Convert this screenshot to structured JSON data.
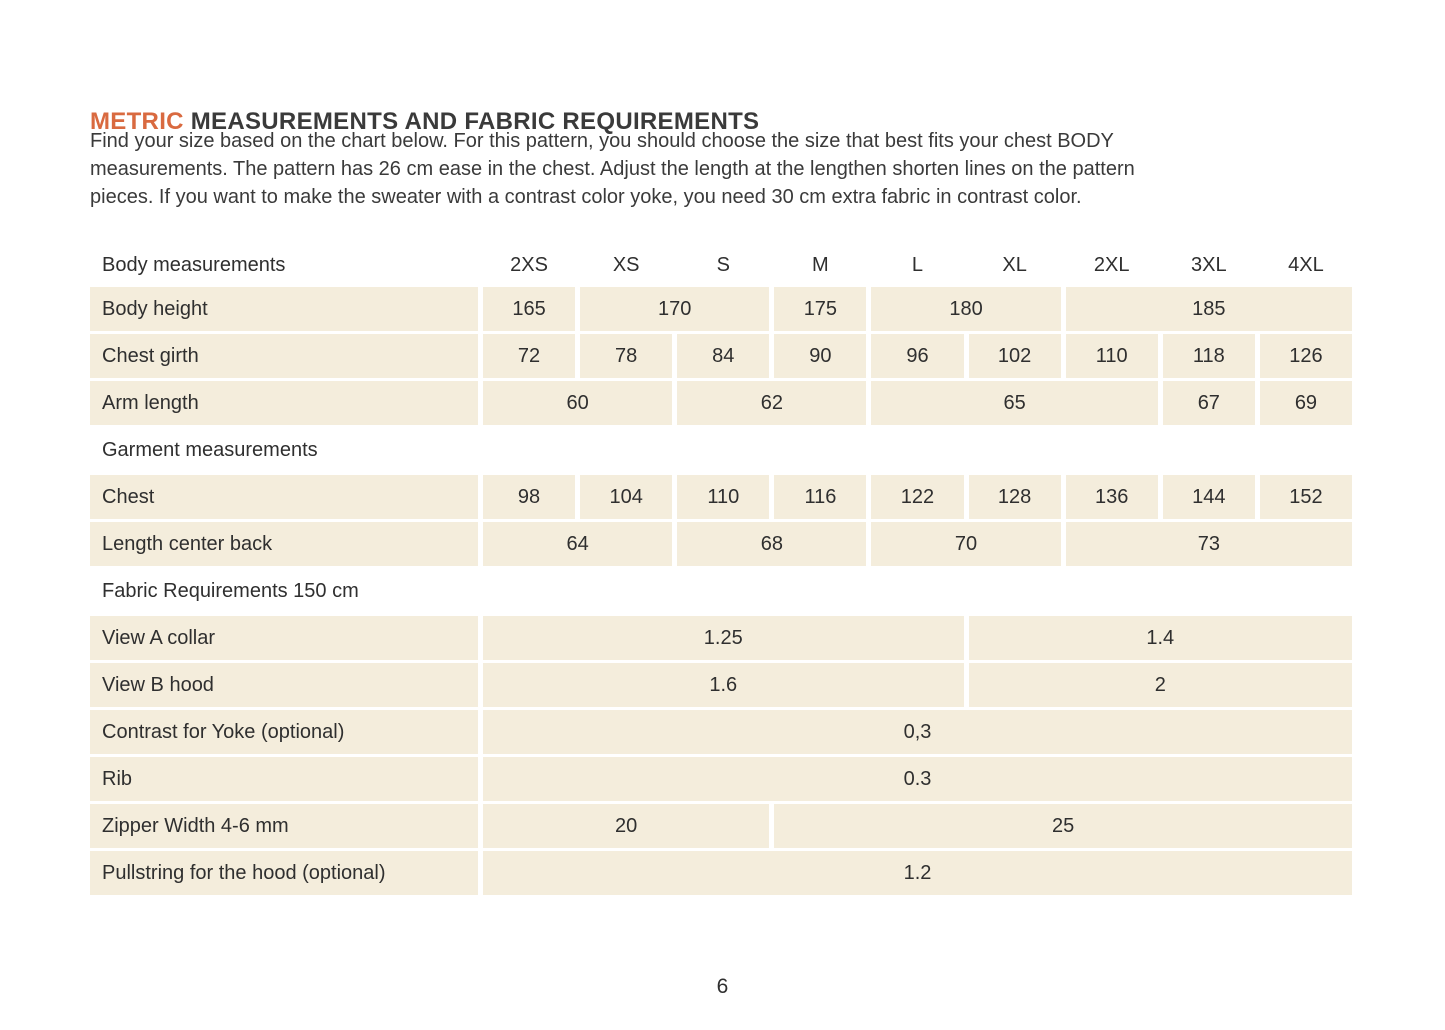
{
  "page": {
    "title_highlight": "METRIC",
    "title_rest": "MEASUREMENTS AND FABRIC REQUIREMENTS",
    "intro_lines": [
      "Find your size based on the chart below. For this pattern, you should choose the size that best fits your chest BODY",
      "measurements. The pattern has 26 cm ease in the chest. Adjust the length at the lengthen shorten lines on the pattern",
      "pieces. If you want to make the sweater with a contrast color yoke, you need 30 cm extra fabric in contrast color.",
      "Find your size based on the chart below. For this pattern, you should choose the size that best fits your chest BODY measurements. The pattern has 26 cm ease in the chest. Adjust the length at the lengthen shorten lines on the pattern pieces. If you want to make the sweater with a contrast color yoke, you need 30 cm extra fabric in contrast color."
    ],
    "page_number": "6"
  },
  "colors": {
    "accent_orange": "#d96a40",
    "cell_beige": "#f4eddc",
    "text_dark": "#2f2f2f"
  },
  "size_table": {
    "header": {
      "label": "Body measurements",
      "sizes": [
        "2XS",
        "XS",
        "S",
        "M",
        "L",
        "XL",
        "2XL",
        "3XL",
        "4XL"
      ]
    },
    "rows": [
      {
        "type": "data",
        "label": "Body height",
        "cells": [
          {
            "text": "165",
            "span": 1
          },
          {
            "text": "170",
            "span": 2
          },
          {
            "text": "175",
            "span": 1
          },
          {
            "text": "180",
            "span": 2
          },
          {
            "text": "185",
            "span": 3
          }
        ]
      },
      {
        "type": "data",
        "label": "Chest girth",
        "cells": [
          {
            "text": "72",
            "span": 1
          },
          {
            "text": "78",
            "span": 1
          },
          {
            "text": "84",
            "span": 1
          },
          {
            "text": "90",
            "span": 1
          },
          {
            "text": "96",
            "span": 1
          },
          {
            "text": "102",
            "span": 1
          },
          {
            "text": "110",
            "span": 1
          },
          {
            "text": "118",
            "span": 1
          },
          {
            "text": "126",
            "span": 1
          }
        ]
      },
      {
        "type": "data",
        "label": "Arm length",
        "cells": [
          {
            "text": "60",
            "span": 2
          },
          {
            "text": "62",
            "span": 2
          },
          {
            "text": "65",
            "span": 3
          },
          {
            "text": "67",
            "span": 1
          },
          {
            "text": "69",
            "span": 1
          }
        ]
      },
      {
        "type": "section",
        "label": "Garment measurements"
      },
      {
        "type": "data",
        "label": "Chest",
        "cells": [
          {
            "text": "98",
            "span": 1
          },
          {
            "text": "104",
            "span": 1
          },
          {
            "text": "110",
            "span": 1
          },
          {
            "text": "116",
            "span": 1
          },
          {
            "text": "122",
            "span": 1
          },
          {
            "text": "128",
            "span": 1
          },
          {
            "text": "136",
            "span": 1
          },
          {
            "text": "144",
            "span": 1
          },
          {
            "text": "152",
            "span": 1
          }
        ]
      },
      {
        "type": "data",
        "label": "Length center back",
        "cells": [
          {
            "text": "64",
            "span": 2
          },
          {
            "text": "68",
            "span": 2
          },
          {
            "text": "70",
            "span": 2
          },
          {
            "text": "73",
            "span": 3
          }
        ]
      },
      {
        "type": "section",
        "label": "Fabric Requirements 150 cm"
      },
      {
        "type": "data",
        "label": "View A collar",
        "cells": [
          {
            "text": "1.25",
            "span": 5
          },
          {
            "text": "1.4",
            "span": 4
          }
        ]
      },
      {
        "type": "data",
        "label": "View B hood",
        "cells": [
          {
            "text": "1.6",
            "span": 5
          },
          {
            "text": "2",
            "span": 4
          }
        ]
      },
      {
        "type": "data",
        "label": "Contrast for Yoke (optional)",
        "cells": [
          {
            "text": "0,3",
            "span": 9
          }
        ]
      },
      {
        "type": "data",
        "label": "Rib",
        "cells": [
          {
            "text": "0.3",
            "span": 9
          }
        ]
      },
      {
        "type": "data",
        "label": "Zipper Width 4-6 mm",
        "cells": [
          {
            "text": "20",
            "span": 3
          },
          {
            "text": "25",
            "span": 6
          }
        ]
      },
      {
        "type": "data",
        "label": "Pullstring for the hood (optional)",
        "cells": [
          {
            "text": "1.2",
            "span": 9
          }
        ]
      }
    ]
  }
}
